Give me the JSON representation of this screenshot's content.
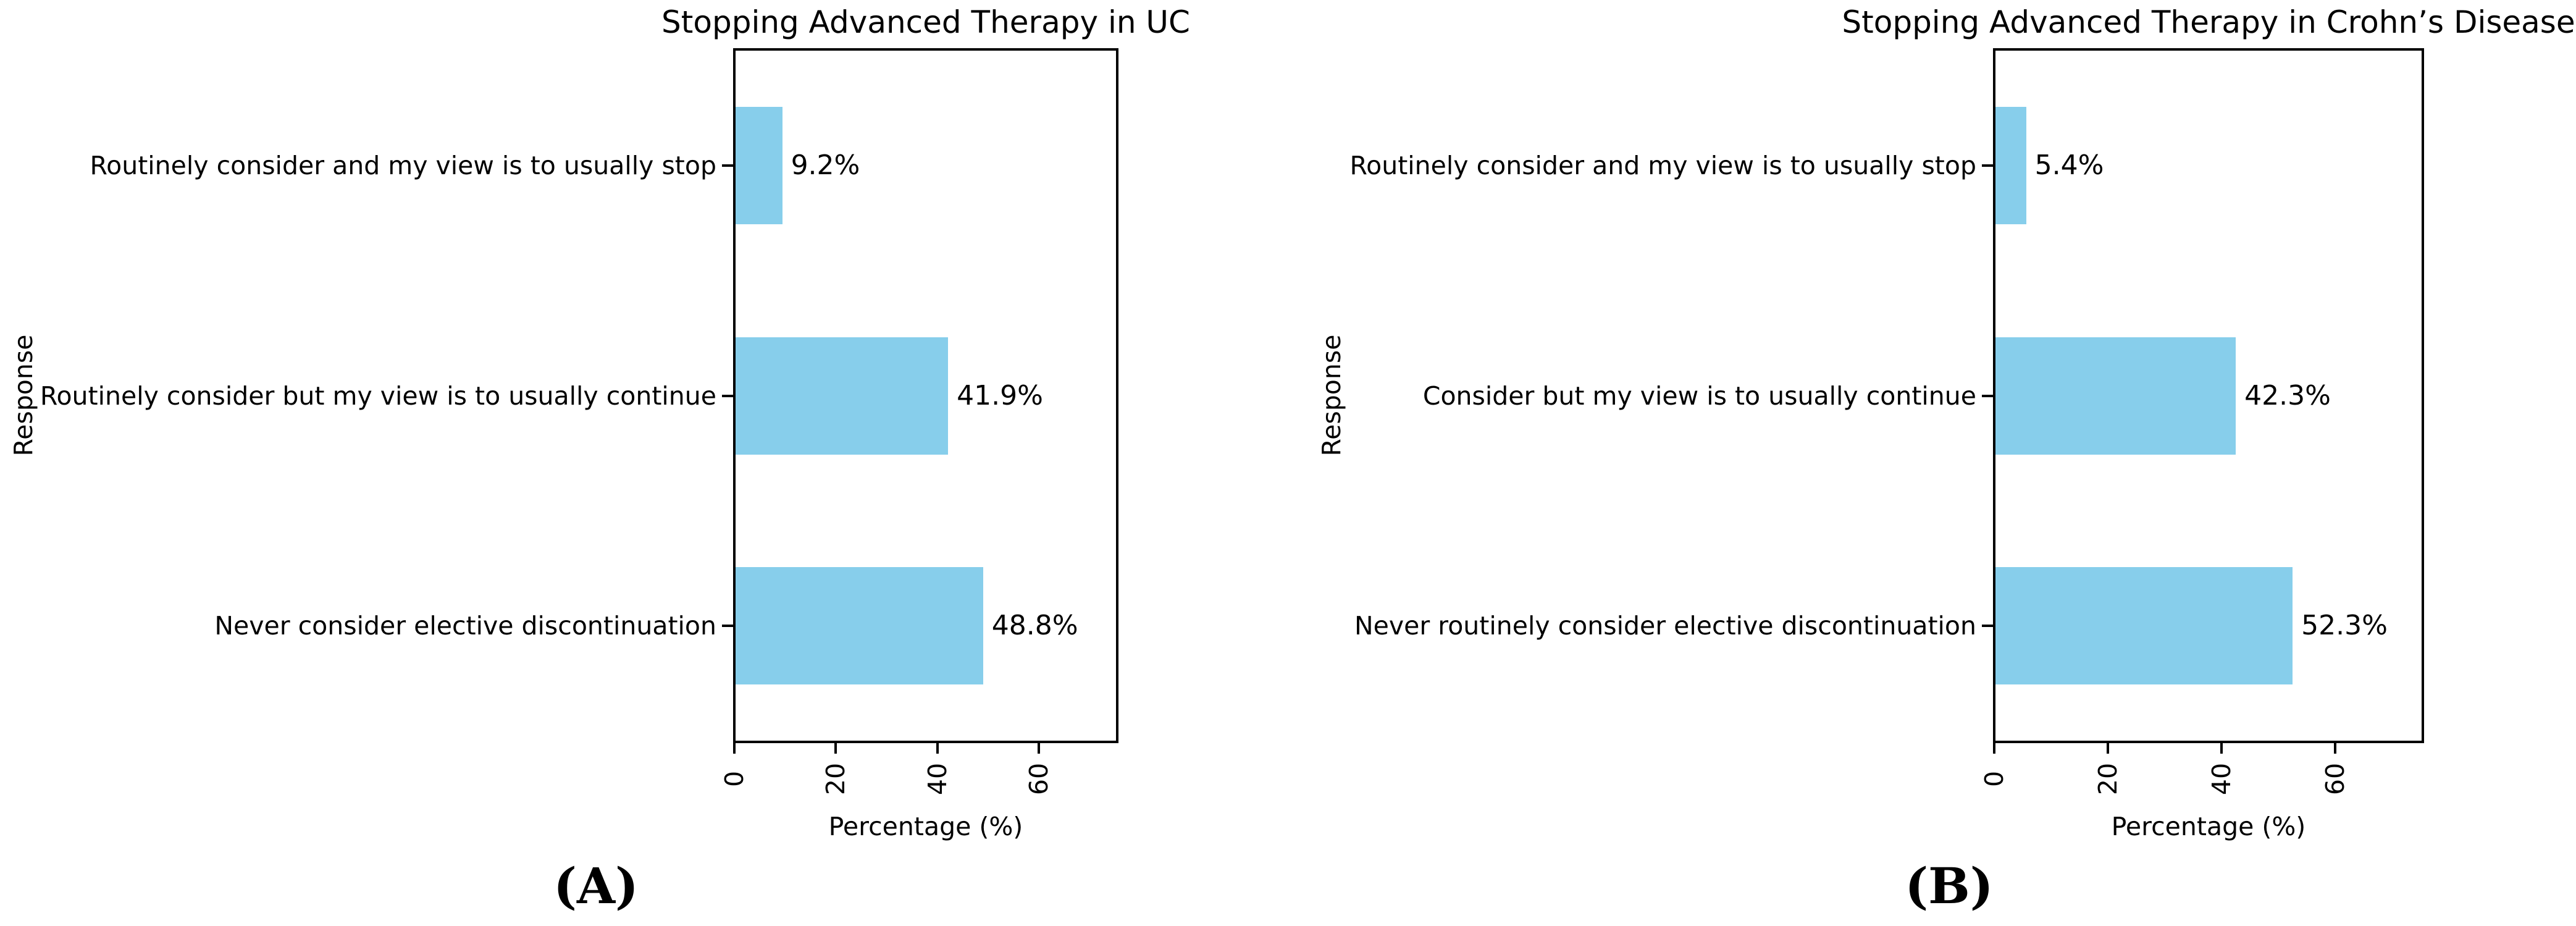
{
  "figure": {
    "background_color": "#ffffff",
    "text_color": "#000000",
    "axis_color": "#000000"
  },
  "chart_data": [
    {
      "type": "bar",
      "orientation": "horizontal",
      "title": "Stopping Advanced Therapy in UC",
      "caption": "(A)",
      "xlabel": "Percentage (%)",
      "ylabel": "Response",
      "xlim": [
        0,
        75
      ],
      "xticks": [
        0,
        20,
        40,
        60
      ],
      "xtick_labels": [
        "0",
        "20",
        "40",
        "60"
      ],
      "grid": false,
      "legend": "none",
      "bar_color": "#87CEEB",
      "categories": [
        "Routinely consider and my view is to usually stop",
        "Routinely consider but my view is to usually continue",
        "Never consider elective discontinuation"
      ],
      "values": [
        9.2,
        41.9,
        48.8
      ],
      "value_labels": [
        "9.2%",
        "41.9%",
        "48.8%"
      ]
    },
    {
      "type": "bar",
      "orientation": "horizontal",
      "title": "Stopping Advanced Therapy in Crohn’s Disease",
      "caption": "(B)",
      "xlabel": "Percentage (%)",
      "ylabel": "Response",
      "xlim": [
        0,
        75
      ],
      "xticks": [
        0,
        20,
        40,
        60
      ],
      "xtick_labels": [
        "0",
        "20",
        "40",
        "60"
      ],
      "grid": false,
      "legend": "none",
      "bar_color": "#87CEEB",
      "categories": [
        "Routinely consider and my view is to usually stop",
        "Consider but my view is to usually continue",
        "Never routinely consider elective discontinuation"
      ],
      "values": [
        5.4,
        42.3,
        52.3
      ],
      "value_labels": [
        "5.4%",
        "42.3%",
        "52.3%"
      ]
    }
  ]
}
